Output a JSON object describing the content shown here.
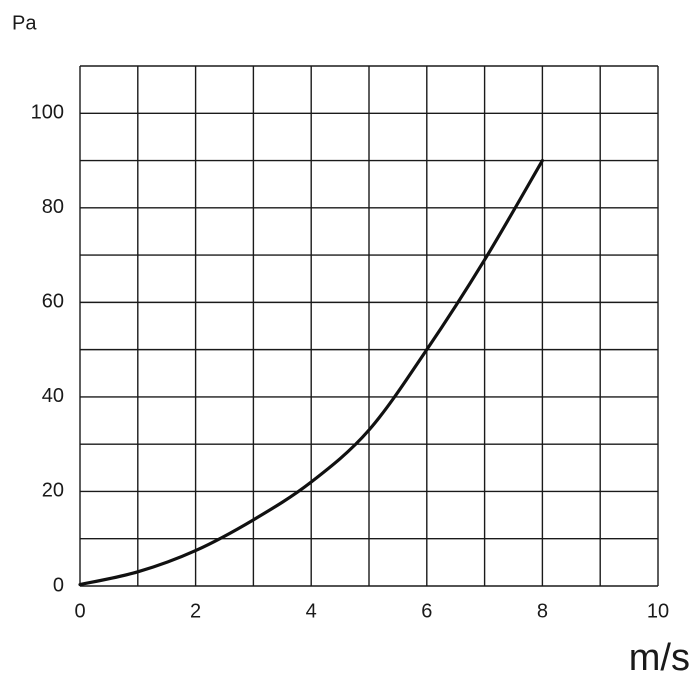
{
  "chart_data": {
    "type": "line",
    "y_label": "Pa",
    "x_label": "m/s",
    "x": [
      0,
      1,
      2,
      3,
      4,
      5,
      6,
      7,
      8
    ],
    "series": [
      {
        "color": "#111111",
        "values": [
          0.3,
          3,
          7.5,
          14,
          22,
          33,
          50,
          69,
          90
        ]
      }
    ],
    "xlim": [
      0,
      10
    ],
    "ylim": [
      0,
      110
    ],
    "xticks": [
      0,
      2,
      4,
      6,
      8,
      10
    ],
    "yticks": [
      0,
      20,
      40,
      60,
      80,
      100
    ],
    "xgrid": [
      0,
      1,
      2,
      3,
      4,
      5,
      6,
      7,
      8,
      9,
      10
    ],
    "ygrid": [
      0,
      10,
      20,
      30,
      40,
      50,
      60,
      70,
      80,
      90,
      100,
      110
    ],
    "grid": true
  }
}
